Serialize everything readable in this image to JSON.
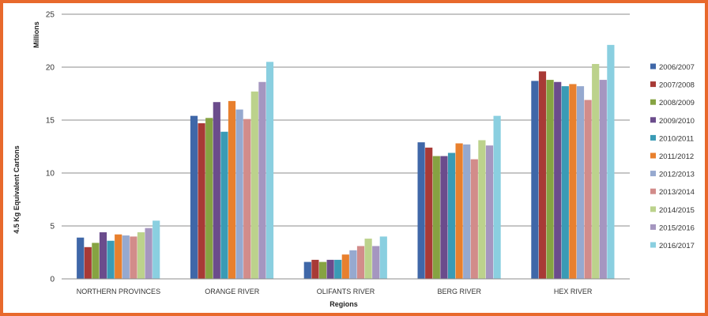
{
  "chart_data": {
    "type": "bar",
    "title": "",
    "xlabel": "Regions",
    "ylabel": "4.5 Kg Equivalent Cartons",
    "unit_label": "Millions",
    "ylim": [
      0,
      25
    ],
    "yticks": [
      0,
      5,
      10,
      15,
      20,
      25
    ],
    "grid": true,
    "legend_position": "right",
    "categories": [
      "NORTHERN PROVINCES",
      "ORANGE RIVER",
      "OLIFANTS RIVER",
      "BERG RIVER",
      "HEX RIVER"
    ],
    "series": [
      {
        "name": "2006/2007",
        "color": "#3F67A8",
        "values": [
          3.9,
          15.4,
          1.6,
          12.9,
          18.7
        ]
      },
      {
        "name": "2007/2008",
        "color": "#A83A36",
        "values": [
          3.0,
          14.7,
          1.8,
          12.4,
          19.6
        ]
      },
      {
        "name": "2008/2009",
        "color": "#86A342",
        "values": [
          3.4,
          15.2,
          1.6,
          11.6,
          18.8
        ]
      },
      {
        "name": "2009/2010",
        "color": "#6B4C8C",
        "values": [
          4.4,
          16.7,
          1.8,
          11.6,
          18.6
        ]
      },
      {
        "name": "2010/2011",
        "color": "#3A9BB5",
        "values": [
          3.6,
          13.9,
          1.8,
          11.9,
          18.2
        ]
      },
      {
        "name": "2011/2012",
        "color": "#E8802E",
        "values": [
          4.2,
          16.8,
          2.3,
          12.8,
          18.4
        ]
      },
      {
        "name": "2012/2013",
        "color": "#96A9CF",
        "values": [
          4.1,
          16.0,
          2.7,
          12.7,
          18.2
        ]
      },
      {
        "name": "2013/2014",
        "color": "#D28C8A",
        "values": [
          4.0,
          15.1,
          3.1,
          11.3,
          16.9
        ]
      },
      {
        "name": "2014/2015",
        "color": "#BCD28C",
        "values": [
          4.4,
          17.7,
          3.8,
          13.1,
          20.3
        ]
      },
      {
        "name": "2015/2016",
        "color": "#A596C0",
        "values": [
          4.8,
          18.6,
          3.1,
          12.6,
          18.8
        ]
      },
      {
        "name": "2016/2017",
        "color": "#8ACFE0",
        "values": [
          5.5,
          20.5,
          4.0,
          15.4,
          22.1
        ]
      }
    ]
  }
}
